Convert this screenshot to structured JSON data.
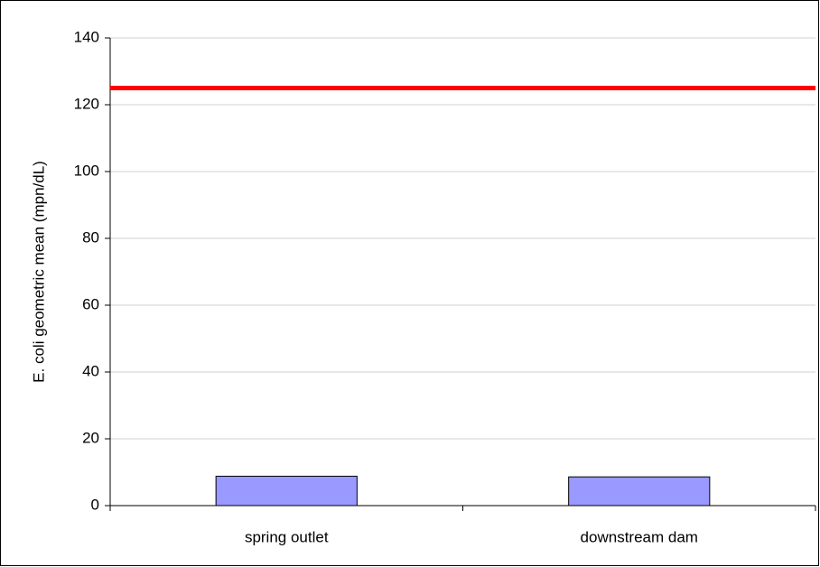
{
  "chart_data": {
    "type": "bar",
    "y_label": "E. coli geometric mean (mpn/dL)",
    "categories": [
      "spring outlet",
      "downstream dam"
    ],
    "values": [
      8.8,
      8.6
    ],
    "color": "#9999ff",
    "reference_line": {
      "value": 125,
      "color": "#ff0000"
    },
    "ylim": [
      0,
      140
    ],
    "yticks": [
      0,
      20,
      40,
      60,
      80,
      100,
      120,
      140
    ],
    "grid": true
  }
}
